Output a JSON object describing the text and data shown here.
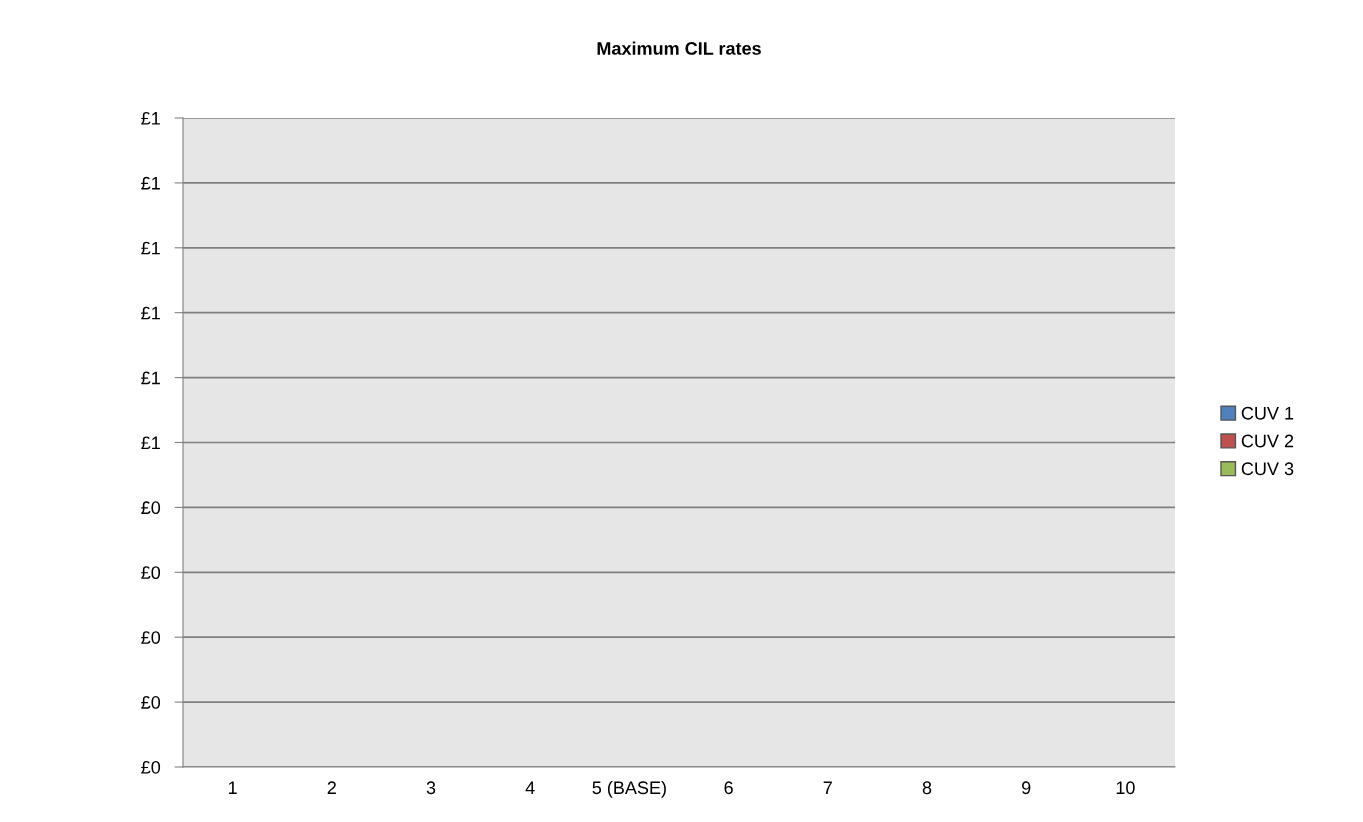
{
  "chart_data": {
    "type": "bar",
    "title": "Maximum CIL rates",
    "categories": [
      "1",
      "2",
      "3",
      "4",
      "5 (BASE)",
      "6",
      "7",
      "8",
      "9",
      "10"
    ],
    "series": [
      {
        "name": "CUV 1",
        "color": "#4f81bd",
        "values": [
          0,
          0,
          0,
          0,
          0,
          0,
          0,
          0,
          0,
          0
        ]
      },
      {
        "name": "CUV 2",
        "color": "#c0504d",
        "values": [
          0,
          0,
          0,
          0,
          0,
          0,
          0,
          0,
          0,
          0
        ]
      },
      {
        "name": "CUV 3",
        "color": "#9bbb59",
        "values": [
          0,
          0,
          0,
          0,
          0,
          0,
          0,
          0,
          0,
          0
        ]
      }
    ],
    "ylim": [
      0,
      1
    ],
    "yticks": [
      {
        "value": 0,
        "label": "£0"
      },
      {
        "value": 0.1,
        "label": "£0"
      },
      {
        "value": 0.2,
        "label": "£0"
      },
      {
        "value": 0.3,
        "label": "£0"
      },
      {
        "value": 0.4,
        "label": "£0"
      },
      {
        "value": 0.5,
        "label": "£1"
      },
      {
        "value": 0.6,
        "label": "£1"
      },
      {
        "value": 0.7,
        "label": "£1"
      },
      {
        "value": 0.8,
        "label": "£1"
      },
      {
        "value": 0.9,
        "label": "£1"
      },
      {
        "value": 1.0,
        "label": "£1"
      }
    ],
    "grid": "y",
    "legend": "right"
  }
}
